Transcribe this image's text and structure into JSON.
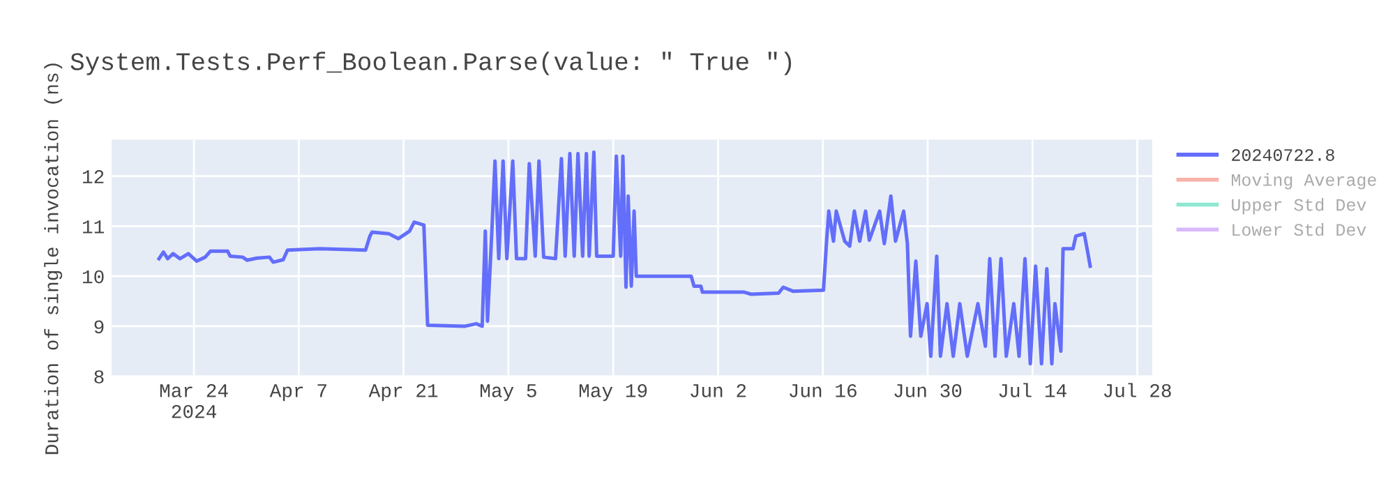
{
  "chart_data": {
    "type": "line",
    "title": "System.Tests.Perf_Boolean.Parse(value: \" True \")",
    "ylabel": "Duration of single invocation (ns)",
    "x": [
      "2024-03-19T08:00",
      "2024-03-19T22:00",
      "2024-03-20T12:00",
      "2024-03-21T05:00",
      "2024-03-22T03:00",
      "2024-03-23T06:00",
      "2024-03-24T09:00",
      "2024-03-25T12:00",
      "2024-03-26T05:00",
      "2024-03-28T12:00",
      "2024-03-28T20:00",
      "2024-03-30T12:00",
      "2024-03-31T02:00",
      "2024-04-01T10:00",
      "2024-04-03T02:00",
      "2024-04-03T14:00",
      "2024-04-04T22:00",
      "2024-04-05T12:00",
      "2024-04-09T19:00",
      "2024-04-15T22:00",
      "2024-04-16T12:00",
      "2024-04-16T19:00",
      "2024-04-19T00:00",
      "2024-04-20T07:00",
      "2024-04-21T19:00",
      "2024-04-22T10:00",
      "2024-04-23T17:00",
      "2024-04-24T05:00",
      "2024-04-29T05:00",
      "2024-04-30T17:00",
      "2024-05-01T12:00",
      "2024-05-01T22:00",
      "2024-05-02T05:00",
      "2024-05-02T19:00",
      "2024-05-03T05:00",
      "2024-05-03T17:00",
      "2024-05-04T07:00",
      "2024-05-04T19:00",
      "2024-05-05T14:00",
      "2024-05-06T02:00",
      "2024-05-07T07:00",
      "2024-05-07T19:00",
      "2024-05-08T14:00",
      "2024-05-09T02:00",
      "2024-05-09T17:00",
      "2024-05-11T07:00",
      "2024-05-12T02:00",
      "2024-05-12T14:00",
      "2024-05-13T05:00",
      "2024-05-13T19:00",
      "2024-05-14T07:00",
      "2024-05-14T22:00",
      "2024-05-15T10:00",
      "2024-05-15T19:00",
      "2024-05-16T10:00",
      "2024-05-16T19:00",
      "2024-05-19T00:00",
      "2024-05-19T10:00",
      "2024-05-20T00:00",
      "2024-05-20T07:00",
      "2024-05-20T17:00",
      "2024-05-21T00:00",
      "2024-05-21T10:00",
      "2024-05-21T19:00",
      "2024-05-22T02:00",
      "2024-05-29T10:00",
      "2024-05-29T19:00",
      "2024-05-30T17:00",
      "2024-05-30T22:00",
      "2024-06-05T12:00",
      "2024-06-06T10:00",
      "2024-06-10T02:00",
      "2024-06-10T17:00",
      "2024-06-12T00:00",
      "2024-06-16T02:00",
      "2024-06-16T12:00",
      "2024-06-16T19:00",
      "2024-06-17T10:00",
      "2024-06-17T19:00",
      "2024-06-18T22:00",
      "2024-06-19T14:00",
      "2024-06-20T05:00",
      "2024-06-20T22:00",
      "2024-06-21T17:00",
      "2024-06-22T05:00",
      "2024-06-23T14:00",
      "2024-06-24T05:00",
      "2024-06-25T02:00",
      "2024-06-25T17:00",
      "2024-06-26T19:00",
      "2024-06-27T07:00",
      "2024-06-27T17:00",
      "2024-06-28T10:00",
      "2024-06-29T02:00",
      "2024-06-29T22:00",
      "2024-06-30T10:00",
      "2024-07-01T05:00",
      "2024-07-01T17:00",
      "2024-07-02T14:00",
      "2024-07-03T10:00",
      "2024-07-04T07:00",
      "2024-07-05T07:00",
      "2024-07-06T17:00",
      "2024-07-07T17:00",
      "2024-07-08T07:00",
      "2024-07-09T00:00",
      "2024-07-09T19:00",
      "2024-07-10T12:00",
      "2024-07-11T12:00",
      "2024-07-12T05:00",
      "2024-07-13T00:00",
      "2024-07-13T17:00",
      "2024-07-14T10:00",
      "2024-07-15T05:00",
      "2024-07-15T22:00",
      "2024-07-16T14:00",
      "2024-07-17T00:00",
      "2024-07-17T19:00",
      "2024-07-18T02:00",
      "2024-07-19T10:00",
      "2024-07-19T19:00",
      "2024-07-20T22:00",
      "2024-07-21T07:00",
      "2024-07-21T17:00"
    ],
    "series": [
      {
        "name": "20240722.8",
        "color": "#636efa",
        "values": [
          10.35,
          10.48,
          10.35,
          10.45,
          10.35,
          10.45,
          10.3,
          10.38,
          10.5,
          10.5,
          10.4,
          10.38,
          10.32,
          10.36,
          10.38,
          10.28,
          10.33,
          10.52,
          10.55,
          10.52,
          10.8,
          10.88,
          10.85,
          10.75,
          10.9,
          11.08,
          11.02,
          9.02,
          9.0,
          9.05,
          9.0,
          10.9,
          9.1,
          10.9,
          12.3,
          10.35,
          12.3,
          10.35,
          12.3,
          10.35,
          10.35,
          12.25,
          10.4,
          12.3,
          10.38,
          10.35,
          12.35,
          10.4,
          12.45,
          10.4,
          12.45,
          10.4,
          12.45,
          10.4,
          12.48,
          10.4,
          10.4,
          12.4,
          10.4,
          12.4,
          9.78,
          11.6,
          9.8,
          11.3,
          10.0,
          10.0,
          9.8,
          9.8,
          9.68,
          9.68,
          9.64,
          9.66,
          9.78,
          9.7,
          9.72,
          10.7,
          11.3,
          10.7,
          11.3,
          10.7,
          10.6,
          11.3,
          10.7,
          11.3,
          10.72,
          11.3,
          10.65,
          11.6,
          10.7,
          11.3,
          10.65,
          8.8,
          10.3,
          8.8,
          9.45,
          8.4,
          10.4,
          8.4,
          9.45,
          8.4,
          9.45,
          8.4,
          9.45,
          8.6,
          10.35,
          8.4,
          10.35,
          8.4,
          9.45,
          8.4,
          10.35,
          8.25,
          10.2,
          8.25,
          10.15,
          8.25,
          9.45,
          8.5,
          10.55,
          10.55,
          10.8,
          10.85,
          10.55,
          10.2
        ]
      },
      {
        "name": "Moving Average",
        "color": "#ef553b",
        "values": [
          null,
          null,
          null,
          null,
          null,
          null,
          null,
          null,
          null,
          null,
          null,
          null,
          null,
          null,
          null,
          null,
          null,
          null,
          null,
          null,
          null,
          null,
          null,
          null,
          null,
          null,
          null,
          null,
          null,
          null,
          null,
          null,
          null,
          null,
          null,
          null,
          null,
          null,
          null,
          null,
          null,
          null,
          null,
          null,
          null,
          null,
          null,
          null,
          null,
          null,
          null,
          null,
          null,
          null,
          null,
          null,
          null,
          null,
          null,
          null,
          null,
          null,
          null,
          null,
          null,
          null,
          null,
          null,
          null,
          null,
          null,
          null,
          null,
          null,
          null,
          null,
          null,
          null,
          null,
          null,
          null,
          null,
          null,
          null,
          null,
          null,
          null,
          null,
          null,
          null,
          null,
          null,
          null,
          null,
          null,
          null,
          null,
          null,
          null,
          null,
          null,
          null,
          null,
          null,
          null,
          null,
          null,
          null,
          null,
          null,
          null,
          null,
          null,
          null,
          null,
          null,
          null,
          null,
          null,
          null,
          null,
          null,
          null,
          null
        ]
      },
      {
        "name": "Upper Std Dev",
        "color": "#00cc96",
        "values": [
          null,
          null,
          null,
          null,
          null,
          null,
          null,
          null,
          null,
          null,
          null,
          null,
          null,
          null,
          null,
          null,
          null,
          null,
          null,
          null,
          null,
          null,
          null,
          null,
          null,
          null,
          null,
          null,
          null,
          null,
          null,
          null,
          null,
          null,
          null,
          null,
          null,
          null,
          null,
          null,
          null,
          null,
          null,
          null,
          null,
          null,
          null,
          null,
          null,
          null,
          null,
          null,
          null,
          null,
          null,
          null,
          null,
          null,
          null,
          null,
          null,
          null,
          null,
          null,
          null,
          null,
          null,
          null,
          null,
          null,
          null,
          null,
          null,
          null,
          null,
          null,
          null,
          null,
          null,
          null,
          null,
          null,
          null,
          null,
          null,
          null,
          null,
          null,
          null,
          null,
          null,
          null,
          null,
          null,
          null,
          null,
          null,
          null,
          null,
          null,
          null,
          null,
          null,
          null,
          null,
          null,
          null,
          null,
          null,
          null,
          null,
          null,
          null,
          null,
          null,
          null,
          null,
          null,
          null,
          null,
          null,
          null,
          null,
          null
        ]
      },
      {
        "name": "Lower Std Dev",
        "color": "#ab63fa",
        "values": [
          null,
          null,
          null,
          null,
          null,
          null,
          null,
          null,
          null,
          null,
          null,
          null,
          null,
          null,
          null,
          null,
          null,
          null,
          null,
          null,
          null,
          null,
          null,
          null,
          null,
          null,
          null,
          null,
          null,
          null,
          null,
          null,
          null,
          null,
          null,
          null,
          null,
          null,
          null,
          null,
          null,
          null,
          null,
          null,
          null,
          null,
          null,
          null,
          null,
          null,
          null,
          null,
          null,
          null,
          null,
          null,
          null,
          null,
          null,
          null,
          null,
          null,
          null,
          null,
          null,
          null,
          null,
          null,
          null,
          null,
          null,
          null,
          null,
          null,
          null,
          null,
          null,
          null,
          null,
          null,
          null,
          null,
          null,
          null,
          null,
          null,
          null,
          null,
          null,
          null,
          null,
          null,
          null,
          null,
          null,
          null,
          null,
          null,
          null,
          null,
          null,
          null,
          null,
          null,
          null,
          null,
          null,
          null,
          null,
          null,
          null,
          null,
          null,
          null,
          null,
          null,
          null,
          null,
          null,
          null,
          null,
          null,
          null,
          null
        ]
      }
    ],
    "xlim": [
      "2024-03-13",
      "2024-07-30"
    ],
    "xticks": [
      {
        "value": "2024-03-24",
        "label": "Mar 24\n2024"
      },
      {
        "value": "2024-04-07",
        "label": "Apr 7"
      },
      {
        "value": "2024-04-21",
        "label": "Apr 21"
      },
      {
        "value": "2024-05-05",
        "label": "May 5"
      },
      {
        "value": "2024-05-19",
        "label": "May 19"
      },
      {
        "value": "2024-06-02",
        "label": "Jun 2"
      },
      {
        "value": "2024-06-16",
        "label": "Jun 16"
      },
      {
        "value": "2024-06-30",
        "label": "Jun 30"
      },
      {
        "value": "2024-07-14",
        "label": "Jul 14"
      },
      {
        "value": "2024-07-28",
        "label": "Jul 28"
      }
    ],
    "ylim": [
      8,
      12.73
    ],
    "yticks": [
      8,
      9,
      10,
      11,
      12
    ],
    "grid": true,
    "legend": "top right",
    "marker": "none",
    "line_style": "solid"
  }
}
